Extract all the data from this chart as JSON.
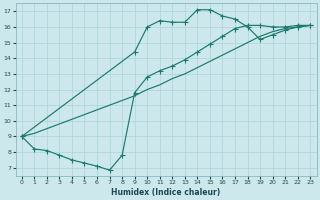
{
  "xlabel": "Humidex (Indice chaleur)",
  "background_color": "#cce8ed",
  "grid_color": "#b0d8de",
  "line_color": "#1a7a6e",
  "xlim": [
    -0.5,
    23.5
  ],
  "ylim": [
    6.5,
    17.5
  ],
  "xticks": [
    0,
    1,
    2,
    3,
    4,
    5,
    6,
    7,
    8,
    9,
    10,
    11,
    12,
    13,
    14,
    15,
    16,
    17,
    18,
    19,
    20,
    21,
    22,
    23
  ],
  "yticks": [
    7,
    8,
    9,
    10,
    11,
    12,
    13,
    14,
    15,
    16,
    17
  ],
  "line_upper_x": [
    0,
    9,
    10,
    11,
    12,
    13,
    14,
    15,
    16,
    17,
    18,
    19,
    20,
    21,
    22,
    23
  ],
  "line_upper_y": [
    9.0,
    14.4,
    16.0,
    16.4,
    16.3,
    16.3,
    17.1,
    17.1,
    16.7,
    16.5,
    16.0,
    15.2,
    15.5,
    15.8,
    16.0,
    16.1
  ],
  "line_mid_x": [
    0,
    1,
    2,
    3,
    4,
    5,
    6,
    7,
    8,
    9,
    10,
    11,
    12,
    13,
    14,
    15,
    16,
    17,
    18,
    19,
    20,
    21,
    22,
    23
  ],
  "line_mid_y": [
    9.0,
    9.2,
    9.5,
    9.8,
    10.1,
    10.4,
    10.7,
    11.0,
    11.3,
    11.6,
    12.0,
    12.3,
    12.7,
    13.0,
    13.4,
    13.8,
    14.2,
    14.6,
    15.0,
    15.4,
    15.7,
    15.9,
    16.0,
    16.1
  ],
  "line_lower_x": [
    0,
    1,
    2,
    3,
    4,
    5,
    6,
    7,
    8,
    9,
    10,
    11,
    12,
    13,
    14,
    15,
    16,
    17,
    18,
    19,
    20,
    21,
    22,
    23
  ],
  "line_lower_y": [
    9.0,
    8.2,
    8.1,
    7.8,
    7.5,
    7.3,
    7.1,
    6.85,
    7.8,
    11.8,
    12.8,
    13.2,
    13.5,
    13.9,
    14.4,
    14.9,
    15.4,
    15.9,
    16.1,
    16.1,
    16.0,
    16.0,
    16.1,
    16.1
  ]
}
